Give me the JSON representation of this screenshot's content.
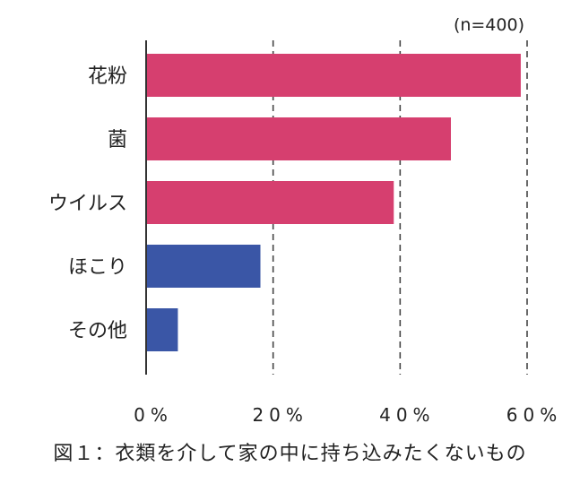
{
  "chart_data": {
    "type": "bar",
    "orientation": "horizontal",
    "categories": [
      "花粉",
      "菌",
      "ウイルス",
      "ほこり",
      "その他"
    ],
    "values": [
      59,
      48,
      39,
      18,
      5
    ],
    "bar_colors": [
      "#d63f6f",
      "#d63f6f",
      "#d63f6f",
      "#3a56a6",
      "#3a56a6"
    ],
    "xlim": [
      0,
      60
    ],
    "ticks": [
      0,
      20,
      40,
      60
    ],
    "tick_labels": [
      "0%",
      "20%",
      "40%",
      "60%"
    ],
    "grid": "dashed vertical",
    "note": "(n=400)"
  },
  "caption": "図１：衣類を介して家の中に持ち込みたくないもの"
}
